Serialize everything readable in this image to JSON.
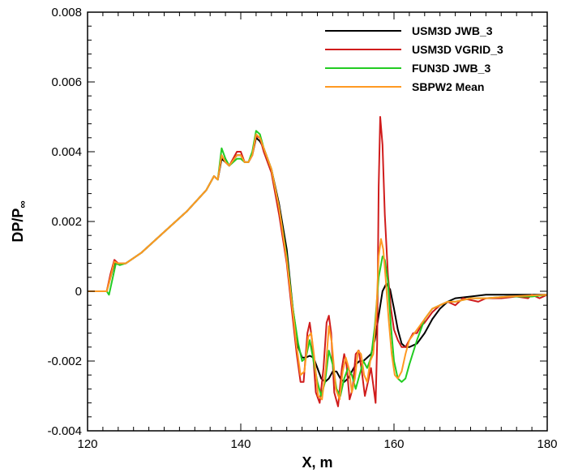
{
  "chart_data": {
    "type": "line",
    "title": "",
    "xlabel": "X, m",
    "ylabel_main": "DP/P",
    "ylabel_sub": "∞",
    "xlim": [
      120,
      180
    ],
    "ylim": [
      -0.004,
      0.008
    ],
    "xticks": [
      120,
      140,
      160,
      180
    ],
    "xtick_labels": [
      "120",
      "140",
      "160",
      "180"
    ],
    "yticks": [
      -0.004,
      -0.002,
      0,
      0.002,
      0.004,
      0.006,
      0.008
    ],
    "ytick_labels": [
      "-0.004",
      "-0.002",
      "0",
      "0.002",
      "0.004",
      "0.006",
      "0.008"
    ],
    "legend_position": "top-right",
    "grid": false,
    "series": [
      {
        "name": "USM3D JWB_3",
        "color": "#000000",
        "points": [
          [
            120,
            0
          ],
          [
            122.5,
            0
          ],
          [
            123,
            0.0004
          ],
          [
            123.5,
            0.0008
          ],
          [
            124,
            0.00078
          ],
          [
            125,
            0.0008
          ],
          [
            127,
            0.0011
          ],
          [
            130,
            0.0017
          ],
          [
            133,
            0.0023
          ],
          [
            135.5,
            0.0029
          ],
          [
            136.5,
            0.0033
          ],
          [
            137,
            0.0032
          ],
          [
            137.5,
            0.0038
          ],
          [
            138,
            0.0037
          ],
          [
            138.5,
            0.0036
          ],
          [
            139.5,
            0.0039
          ],
          [
            140,
            0.0039
          ],
          [
            140.5,
            0.0037
          ],
          [
            141,
            0.0037
          ],
          [
            141.5,
            0.0039
          ],
          [
            142,
            0.0044
          ],
          [
            142.5,
            0.0043
          ],
          [
            143,
            0.0041
          ],
          [
            144,
            0.0035
          ],
          [
            145,
            0.0025
          ],
          [
            146,
            0.0012
          ],
          [
            146.8,
            -0.0005
          ],
          [
            147.5,
            -0.0016
          ],
          [
            148,
            -0.0019
          ],
          [
            148.5,
            -0.0019
          ],
          [
            149,
            -0.00185
          ],
          [
            149.5,
            -0.0019
          ],
          [
            150,
            -0.0022
          ],
          [
            150.5,
            -0.0025
          ],
          [
            151,
            -0.0026
          ],
          [
            151.5,
            -0.0025
          ],
          [
            152,
            -0.0023
          ],
          [
            152.5,
            -0.0023
          ],
          [
            153,
            -0.0025
          ],
          [
            153.5,
            -0.0026
          ],
          [
            154,
            -0.0025
          ],
          [
            154.5,
            -0.0023
          ],
          [
            155,
            -0.0021
          ],
          [
            155.5,
            -0.002
          ],
          [
            156,
            -0.002
          ],
          [
            156.5,
            -0.0019
          ],
          [
            157,
            -0.0018
          ],
          [
            157.5,
            -0.0014
          ],
          [
            158,
            -0.0007
          ],
          [
            158.5,
            0
          ],
          [
            159,
            0.00022
          ],
          [
            159.5,
            5e-05
          ],
          [
            160,
            -0.0005
          ],
          [
            160.5,
            -0.0011
          ],
          [
            161,
            -0.0015
          ],
          [
            161.5,
            -0.0016
          ],
          [
            162,
            -0.0016
          ],
          [
            163,
            -0.0015
          ],
          [
            164,
            -0.0012
          ],
          [
            165,
            -0.0008
          ],
          [
            166,
            -0.0005
          ],
          [
            167,
            -0.0003
          ],
          [
            168,
            -0.0002
          ],
          [
            170,
            -0.00015
          ],
          [
            172,
            -0.0001
          ],
          [
            175,
            -0.0001
          ],
          [
            178,
            -0.0001
          ],
          [
            180,
            -0.0001
          ]
        ]
      },
      {
        "name": "USM3D VGRID_3",
        "color": "#d01c1c",
        "points": [
          [
            120,
            0
          ],
          [
            122.5,
            0
          ],
          [
            123,
            0.0005
          ],
          [
            123.5,
            0.0009
          ],
          [
            124,
            0.0008
          ],
          [
            125,
            0.0008
          ],
          [
            127,
            0.0011
          ],
          [
            130,
            0.0017
          ],
          [
            133,
            0.0023
          ],
          [
            135.5,
            0.0029
          ],
          [
            136.5,
            0.0033
          ],
          [
            137,
            0.0032
          ],
          [
            137.5,
            0.0039
          ],
          [
            138,
            0.0037
          ],
          [
            138.5,
            0.0036
          ],
          [
            139.5,
            0.004
          ],
          [
            140,
            0.004
          ],
          [
            140.5,
            0.0037
          ],
          [
            141,
            0.0037
          ],
          [
            141.5,
            0.0039
          ],
          [
            142,
            0.00445
          ],
          [
            142.5,
            0.0044
          ],
          [
            143,
            0.004
          ],
          [
            144,
            0.0034
          ],
          [
            145,
            0.0022
          ],
          [
            146,
            0.0008
          ],
          [
            146.8,
            -0.0008
          ],
          [
            147.3,
            -0.0018
          ],
          [
            147.8,
            -0.0026
          ],
          [
            148.2,
            -0.0026
          ],
          [
            148.7,
            -0.0012
          ],
          [
            149,
            -0.0009
          ],
          [
            149.3,
            -0.0014
          ],
          [
            149.8,
            -0.0029
          ],
          [
            150.3,
            -0.0032
          ],
          [
            150.8,
            -0.0022
          ],
          [
            151.2,
            -0.0009
          ],
          [
            151.5,
            -0.0007
          ],
          [
            151.8,
            -0.0012
          ],
          [
            152.2,
            -0.0029
          ],
          [
            152.7,
            -0.0033
          ],
          [
            153.2,
            -0.0022
          ],
          [
            153.5,
            -0.0018
          ],
          [
            153.8,
            -0.0021
          ],
          [
            154.2,
            -0.0031
          ],
          [
            154.6,
            -0.0028
          ],
          [
            155,
            -0.0018
          ],
          [
            155.4,
            -0.0017
          ],
          [
            155.8,
            -0.0023
          ],
          [
            156.2,
            -0.003
          ],
          [
            156.6,
            -0.0026
          ],
          [
            157,
            -0.0022
          ],
          [
            157.3,
            -0.0027
          ],
          [
            157.6,
            -0.0032
          ],
          [
            157.8,
            -0.0015
          ],
          [
            158,
            0.003
          ],
          [
            158.2,
            0.005
          ],
          [
            158.5,
            0.0042
          ],
          [
            158.8,
            0.0022
          ],
          [
            159.2,
            0.0005
          ],
          [
            159.6,
            -0.0005
          ],
          [
            160,
            -0.0011
          ],
          [
            160.5,
            -0.0014
          ],
          [
            161,
            -0.0016
          ],
          [
            161.5,
            -0.0016
          ],
          [
            162,
            -0.0014
          ],
          [
            162.5,
            -0.0012
          ],
          [
            163,
            -0.0012
          ],
          [
            163.5,
            -0.001
          ],
          [
            164,
            -0.0009
          ],
          [
            165,
            -0.0006
          ],
          [
            166,
            -0.0004
          ],
          [
            167,
            -0.0003
          ],
          [
            168,
            -0.0004
          ],
          [
            169,
            -0.0002
          ],
          [
            171,
            -0.0003
          ],
          [
            172,
            -0.0002
          ],
          [
            174,
            -0.0002
          ],
          [
            176,
            -0.00015
          ],
          [
            177.5,
            -0.0002
          ],
          [
            178,
            -0.0001
          ],
          [
            179,
            -0.0002
          ],
          [
            180,
            -0.0001
          ]
        ]
      },
      {
        "name": "FUN3D JWB_3",
        "color": "#22cc22",
        "points": [
          [
            120,
            0
          ],
          [
            122.5,
            0
          ],
          [
            122.8,
            -0.0001
          ],
          [
            123.3,
            0.0004
          ],
          [
            123.7,
            0.0008
          ],
          [
            124.2,
            0.00075
          ],
          [
            125,
            0.0008
          ],
          [
            127,
            0.0011
          ],
          [
            130,
            0.0017
          ],
          [
            133,
            0.0023
          ],
          [
            135.5,
            0.0029
          ],
          [
            136.5,
            0.0033
          ],
          [
            137,
            0.0032
          ],
          [
            137.5,
            0.0041
          ],
          [
            138,
            0.0038
          ],
          [
            138.5,
            0.0036
          ],
          [
            139.5,
            0.0038
          ],
          [
            140,
            0.0038
          ],
          [
            140.5,
            0.0037
          ],
          [
            141,
            0.0037
          ],
          [
            141.5,
            0.004
          ],
          [
            142,
            0.0046
          ],
          [
            142.5,
            0.0045
          ],
          [
            143,
            0.0041
          ],
          [
            144,
            0.0035
          ],
          [
            145,
            0.0024
          ],
          [
            146,
            0.001
          ],
          [
            146.8,
            -0.0005
          ],
          [
            147.5,
            -0.0015
          ],
          [
            148,
            -0.002
          ],
          [
            148.5,
            -0.0019
          ],
          [
            149,
            -0.0014
          ],
          [
            149.5,
            -0.002
          ],
          [
            150,
            -0.0026
          ],
          [
            150.5,
            -0.003
          ],
          [
            151,
            -0.0026
          ],
          [
            151.5,
            -0.0017
          ],
          [
            152,
            -0.0021
          ],
          [
            152.5,
            -0.0028
          ],
          [
            153,
            -0.003
          ],
          [
            153.5,
            -0.0025
          ],
          [
            154,
            -0.0022
          ],
          [
            154.5,
            -0.0024
          ],
          [
            155,
            -0.0028
          ],
          [
            155.5,
            -0.0024
          ],
          [
            156,
            -0.002
          ],
          [
            156.5,
            -0.0022
          ],
          [
            157,
            -0.0019
          ],
          [
            157.5,
            -0.001
          ],
          [
            158,
            0.0004
          ],
          [
            158.5,
            0.001
          ],
          [
            158.8,
            0.0009
          ],
          [
            159.2,
            0.0003
          ],
          [
            159.6,
            -0.001
          ],
          [
            160,
            -0.002
          ],
          [
            160.5,
            -0.0025
          ],
          [
            161,
            -0.0026
          ],
          [
            161.5,
            -0.0025
          ],
          [
            162,
            -0.0021
          ],
          [
            163,
            -0.0014
          ],
          [
            164,
            -0.0008
          ],
          [
            165,
            -0.0005
          ],
          [
            166,
            -0.0004
          ],
          [
            167,
            -0.0003
          ],
          [
            168,
            -0.0003
          ],
          [
            170,
            -0.0002
          ],
          [
            172,
            -0.0002
          ],
          [
            175,
            -0.00015
          ],
          [
            178,
            -0.00015
          ],
          [
            180,
            -0.0001
          ]
        ]
      },
      {
        "name": "SBPW2 Mean",
        "color": "#ff9922",
        "points": [
          [
            120,
            0
          ],
          [
            122.5,
            0
          ],
          [
            123,
            0.0004
          ],
          [
            123.5,
            0.00085
          ],
          [
            124,
            0.0008
          ],
          [
            125,
            0.0008
          ],
          [
            127,
            0.0011
          ],
          [
            130,
            0.0017
          ],
          [
            133,
            0.0023
          ],
          [
            135.5,
            0.0029
          ],
          [
            136.5,
            0.0033
          ],
          [
            137,
            0.0032
          ],
          [
            137.5,
            0.0039
          ],
          [
            138,
            0.0037
          ],
          [
            138.5,
            0.0036
          ],
          [
            139.5,
            0.0039
          ],
          [
            140,
            0.0039
          ],
          [
            140.5,
            0.0037
          ],
          [
            141,
            0.0037
          ],
          [
            141.5,
            0.0039
          ],
          [
            142,
            0.0045
          ],
          [
            142.5,
            0.0044
          ],
          [
            143,
            0.0041
          ],
          [
            144,
            0.0035
          ],
          [
            145,
            0.0024
          ],
          [
            146,
            0.0009
          ],
          [
            146.8,
            -0.0006
          ],
          [
            147.3,
            -0.0016
          ],
          [
            147.8,
            -0.0024
          ],
          [
            148.3,
            -0.0023
          ],
          [
            148.8,
            -0.0013
          ],
          [
            149.2,
            -0.0012
          ],
          [
            149.6,
            -0.0019
          ],
          [
            150.1,
            -0.003
          ],
          [
            150.6,
            -0.0031
          ],
          [
            151.1,
            -0.0022
          ],
          [
            151.5,
            -0.001
          ],
          [
            151.9,
            -0.0015
          ],
          [
            152.4,
            -0.0028
          ],
          [
            152.9,
            -0.0031
          ],
          [
            153.3,
            -0.0023
          ],
          [
            153.7,
            -0.0019
          ],
          [
            154.1,
            -0.0022
          ],
          [
            154.5,
            -0.0029
          ],
          [
            154.9,
            -0.0025
          ],
          [
            155.3,
            -0.0017
          ],
          [
            155.7,
            -0.0018
          ],
          [
            156.1,
            -0.0024
          ],
          [
            156.5,
            -0.0026
          ],
          [
            156.9,
            -0.002
          ],
          [
            157.3,
            -0.0018
          ],
          [
            157.7,
            -0.0006
          ],
          [
            158,
            0.001
          ],
          [
            158.3,
            0.0015
          ],
          [
            158.6,
            0.0012
          ],
          [
            158.9,
            0.0004
          ],
          [
            159.3,
            -0.0008
          ],
          [
            159.7,
            -0.0018
          ],
          [
            160.1,
            -0.0024
          ],
          [
            160.5,
            -0.0025
          ],
          [
            161,
            -0.0023
          ],
          [
            161.5,
            -0.0018
          ],
          [
            162,
            -0.0014
          ],
          [
            163,
            -0.0011
          ],
          [
            164,
            -0.0008
          ],
          [
            165,
            -0.0005
          ],
          [
            166,
            -0.0004
          ],
          [
            167,
            -0.0003
          ],
          [
            168,
            -0.0003
          ],
          [
            170,
            -0.0002
          ],
          [
            172,
            -0.0002
          ],
          [
            175,
            -0.00015
          ],
          [
            178,
            -0.00012
          ],
          [
            180,
            -0.0001
          ]
        ]
      }
    ]
  }
}
